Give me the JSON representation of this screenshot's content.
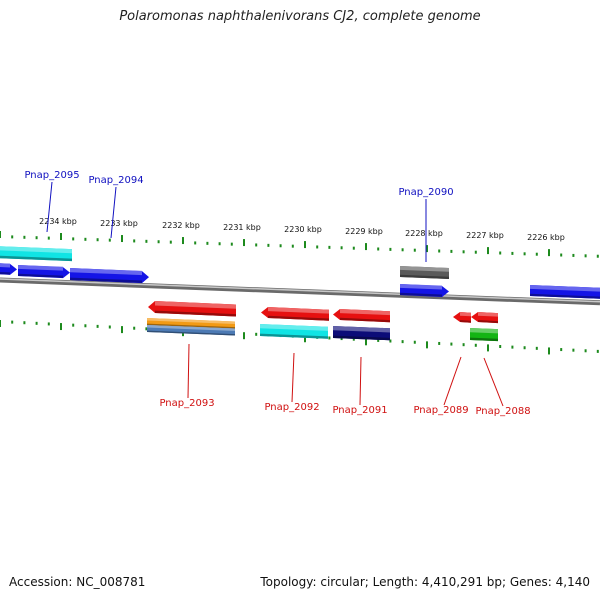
{
  "title": "Polaromonas naphthalenivorans CJ2, complete genome",
  "footer": {
    "accession": "Accession: NC_008781",
    "summary": "Topology: circular; Length: 4,410,291 bp; Genes: 4,140"
  },
  "colors": {
    "backbone": "#8a8a8a",
    "tick": "#1d8a1d",
    "label_forward": "#1010c0",
    "label_reverse": "#d01010",
    "blue": "#1414e6",
    "cyan": "#10e4e4",
    "red": "#e61010",
    "navy": "#0c0c78",
    "orange": "#f29a14",
    "steel": "#4c7ab4",
    "gray": "#5a5a5a",
    "green": "#14b414"
  },
  "scale": {
    "ticks": [
      {
        "label": "2234 kbp"
      },
      {
        "label": "2233 kbp"
      },
      {
        "label": "2232 kbp"
      },
      {
        "label": "2231 kbp"
      },
      {
        "label": "2230 kbp"
      },
      {
        "label": "2229 kbp"
      },
      {
        "label": "2228 kbp"
      },
      {
        "label": "2227 kbp"
      },
      {
        "label": "2226 kbp"
      }
    ]
  },
  "gene_labels": [
    {
      "name": "Pnap_2095",
      "strand": "forward"
    },
    {
      "name": "Pnap_2094",
      "strand": "forward"
    },
    {
      "name": "Pnap_2090",
      "strand": "forward"
    },
    {
      "name": "Pnap_2093",
      "strand": "reverse"
    },
    {
      "name": "Pnap_2092",
      "strand": "reverse"
    },
    {
      "name": "Pnap_2091",
      "strand": "reverse"
    },
    {
      "name": "Pnap_2089",
      "strand": "reverse"
    },
    {
      "name": "Pnap_2088",
      "strand": "reverse"
    }
  ]
}
